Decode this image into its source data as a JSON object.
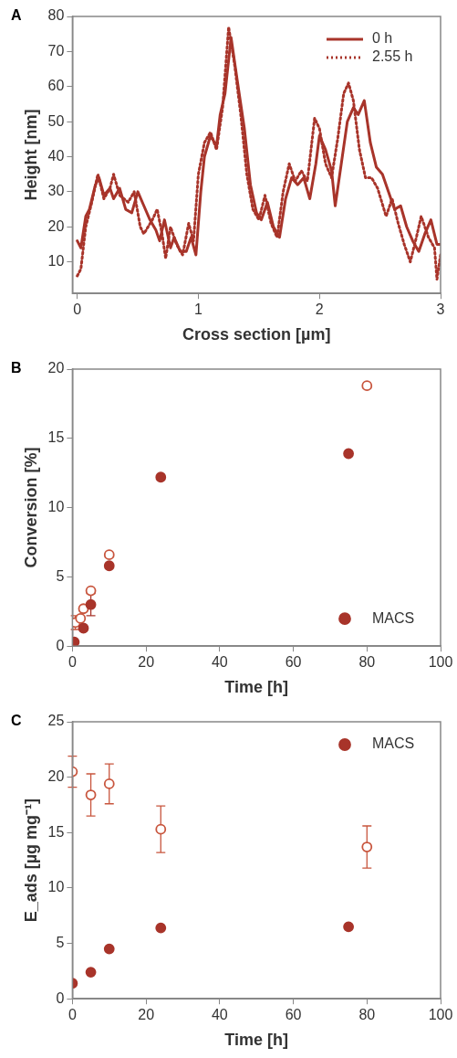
{
  "chart_data": [
    {
      "type": "line",
      "title": "A",
      "xlabel": "Cross section [µm]",
      "ylabel": "Height [nm]",
      "xlim": [
        -0.04,
        3
      ],
      "xticks": [
        0,
        1,
        2,
        3
      ],
      "ylim": [
        1,
        80
      ],
      "yticks": [
        10,
        20,
        30,
        40,
        50,
        60,
        70,
        80
      ],
      "grid": false,
      "legend": "top right",
      "marker": "none",
      "series": [
        {
          "name": "0 h",
          "color": "#a8342a",
          "line_style": "solid",
          "x": [
            0,
            0.03,
            0.07,
            0.1,
            0.15,
            0.18,
            0.22,
            0.27,
            0.3,
            0.35,
            0.4,
            0.45,
            0.5,
            0.55,
            0.6,
            0.65,
            0.68,
            0.72,
            0.77,
            0.8,
            0.85,
            0.9,
            0.94,
            0.98,
            1.02,
            1.05,
            1.1,
            1.15,
            1.18,
            1.22,
            1.27,
            1.32,
            1.38,
            1.43,
            1.48,
            1.52,
            1.57,
            1.62,
            1.67,
            1.72,
            1.77,
            1.82,
            1.87,
            1.92,
            1.97,
            2.0,
            2.05,
            2.1,
            2.13,
            2.18,
            2.23,
            2.28,
            2.32,
            2.37,
            2.42,
            2.47,
            2.52,
            2.57,
            2.62,
            2.67,
            2.72,
            2.77,
            2.82,
            2.87,
            2.92,
            2.97,
            3.0
          ],
          "values": [
            16,
            14,
            23,
            25,
            32,
            34,
            29,
            31,
            28,
            31,
            25,
            24,
            30,
            26,
            22,
            19,
            16,
            22,
            14,
            17,
            13,
            13,
            17,
            12,
            30,
            40,
            46,
            43,
            52,
            58,
            74,
            62,
            48,
            32,
            24,
            22,
            27,
            20,
            17,
            28,
            34,
            32,
            34,
            28,
            38,
            46,
            42,
            36,
            26,
            38,
            50,
            54,
            52,
            56,
            44,
            37,
            35,
            30,
            25,
            26,
            20,
            16,
            13,
            18,
            22,
            15,
            15
          ]
        },
        {
          "name": "2.55 h",
          "color": "#a8342a",
          "line_style": "dotted",
          "x": [
            0,
            0.03,
            0.07,
            0.12,
            0.17,
            0.22,
            0.27,
            0.3,
            0.35,
            0.42,
            0.47,
            0.52,
            0.55,
            0.62,
            0.66,
            0.7,
            0.73,
            0.77,
            0.82,
            0.87,
            0.92,
            0.96,
            1.0,
            1.05,
            1.1,
            1.15,
            1.2,
            1.25,
            1.3,
            1.35,
            1.4,
            1.45,
            1.5,
            1.55,
            1.6,
            1.65,
            1.7,
            1.75,
            1.8,
            1.85,
            1.9,
            1.96,
            2.0,
            2.05,
            2.1,
            2.15,
            2.2,
            2.24,
            2.28,
            2.33,
            2.38,
            2.43,
            2.48,
            2.55,
            2.6,
            2.65,
            2.7,
            2.75,
            2.8,
            2.84,
            2.9,
            2.95,
            2.97,
            3.0
          ],
          "values": [
            6,
            8,
            20,
            27,
            35,
            28,
            31,
            35,
            29,
            27,
            30,
            20,
            18,
            22,
            25,
            18,
            11,
            20,
            15,
            12,
            21,
            16,
            35,
            44,
            47,
            42,
            54,
            77,
            66,
            52,
            35,
            25,
            22,
            29,
            21,
            17,
            30,
            38,
            33,
            36,
            33,
            51,
            48,
            38,
            34,
            45,
            58,
            61,
            56,
            42,
            34,
            34,
            31,
            23,
            28,
            21,
            15,
            10,
            17,
            23,
            17,
            14,
            5,
            12
          ]
        }
      ]
    },
    {
      "type": "scatter",
      "title": "B",
      "xlabel": "Time [h]",
      "ylabel": "Conversion [%]",
      "xlim": [
        0,
        100
      ],
      "xticks": [
        0,
        20,
        40,
        60,
        80,
        100
      ],
      "ylim": [
        0,
        20
      ],
      "yticks": [
        0,
        5,
        10,
        15,
        20
      ],
      "grid": false,
      "legend": "bottom right",
      "marker": "circle",
      "series": [
        {
          "name": "MACS",
          "color": "#a8342a",
          "x": [
            0.5,
            3,
            5,
            10,
            24,
            75
          ],
          "values": [
            0.3,
            1.3,
            3.0,
            5.8,
            12.2,
            13.9
          ],
          "errors": [
            null,
            null,
            0.8,
            null,
            null,
            null
          ]
        },
        {
          "color": "#c8553d",
          "x": [
            0.8,
            2.2,
            3,
            5,
            10,
            80
          ],
          "values": [
            1.7,
            2.0,
            2.7,
            4.0,
            6.6,
            18.8
          ],
          "errors": [
            0.5,
            null,
            null,
            null,
            null,
            null
          ]
        }
      ]
    },
    {
      "type": "scatter",
      "title": "C",
      "xlabel": "Time [h]",
      "ylabel": "E_ads [µg mg⁻¹]",
      "xlim": [
        0,
        100
      ],
      "xticks": [
        0,
        20,
        40,
        60,
        80,
        100
      ],
      "ylim": [
        0,
        25
      ],
      "yticks": [
        0,
        5,
        10,
        15,
        20,
        25
      ],
      "grid": false,
      "legend": "top right",
      "marker": "circle",
      "series": [
        {
          "name": "MACS",
          "color": "#a8342a",
          "x": [
            0,
            5,
            10,
            24,
            75
          ],
          "values": [
            1.4,
            2.4,
            4.5,
            6.4,
            6.5
          ]
        },
        {
          "color": "#c8553d",
          "x": [
            0,
            5,
            10,
            24,
            80
          ],
          "values": [
            20.5,
            18.4,
            19.4,
            15.3,
            13.7
          ],
          "errors": [
            1.4,
            1.9,
            1.8,
            2.1,
            1.9
          ]
        }
      ]
    }
  ]
}
